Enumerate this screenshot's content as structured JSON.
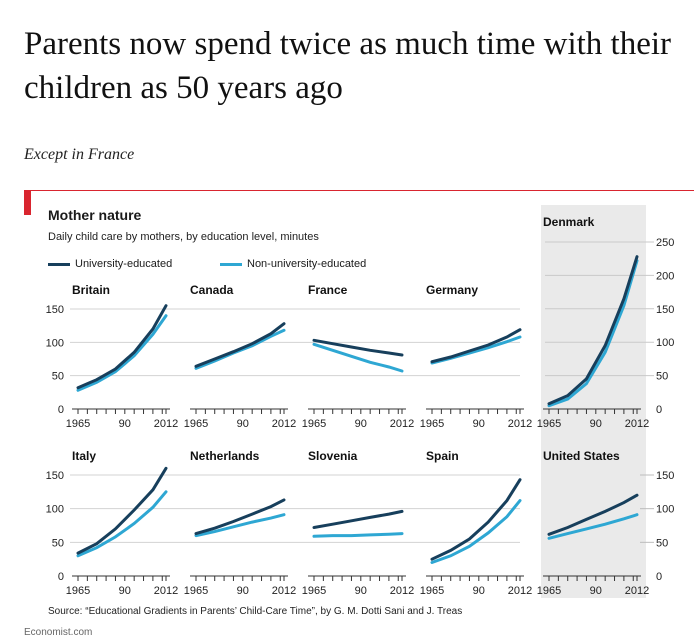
{
  "headline": "Parents now spend twice as much time with their children as 50 years ago",
  "subhead": "Except in France",
  "source": "Source: “Educational Gradients in Parents’ Child-Care Time”, by G. M. Dotti Sani and J. Treas",
  "brand": "Economist.com",
  "colors": {
    "university": "#173f5c",
    "non_university": "#2ea7d3",
    "accent": "#d9252f"
  },
  "chart_data": {
    "type": "line",
    "title": "Mother nature",
    "subtitle": "Daily child care by mothers, by education level, minutes",
    "legend": [
      "University-educated",
      "Non-university-educated"
    ],
    "x": [
      1965,
      1975,
      1985,
      1995,
      2005,
      2012
    ],
    "x_ticks": [
      "1965",
      "90",
      "2012"
    ],
    "y_ticks_small": [
      "150",
      "100",
      "50",
      "0"
    ],
    "y_ticks_denmark": [
      "250",
      "200",
      "150",
      "100",
      "50",
      "0"
    ],
    "ylim_small": [
      0,
      160
    ],
    "ylim_denmark": [
      0,
      250
    ],
    "panels": [
      {
        "country": "Britain",
        "university": [
          32,
          44,
          60,
          85,
          120,
          155
        ],
        "non_university": [
          28,
          40,
          56,
          80,
          112,
          140
        ]
      },
      {
        "country": "Canada",
        "university": [
          64,
          75,
          86,
          98,
          113,
          128
        ],
        "non_university": [
          61,
          72,
          84,
          95,
          109,
          118
        ]
      },
      {
        "country": "France",
        "university": [
          103,
          98,
          93,
          88,
          84,
          81
        ],
        "non_university": [
          97,
          88,
          79,
          70,
          63,
          57
        ]
      },
      {
        "country": "Germany",
        "university": [
          71,
          78,
          87,
          96,
          108,
          119
        ],
        "non_university": [
          69,
          76,
          84,
          92,
          101,
          108
        ]
      },
      {
        "country": "Denmark",
        "university": [
          8,
          20,
          45,
          95,
          165,
          228
        ],
        "non_university": [
          5,
          15,
          38,
          85,
          155,
          222
        ]
      },
      {
        "country": "Italy",
        "university": [
          34,
          48,
          70,
          98,
          128,
          160
        ],
        "non_university": [
          30,
          42,
          58,
          78,
          102,
          125
        ]
      },
      {
        "country": "Netherlands",
        "university": [
          63,
          71,
          81,
          92,
          103,
          113
        ],
        "non_university": [
          60,
          66,
          73,
          80,
          86,
          91
        ]
      },
      {
        "country": "Slovenia",
        "university": [
          72,
          77,
          82,
          87,
          92,
          96
        ],
        "non_university": [
          59,
          60,
          60,
          61,
          62,
          63
        ]
      },
      {
        "country": "Spain",
        "university": [
          25,
          38,
          55,
          80,
          112,
          143
        ],
        "non_university": [
          20,
          30,
          44,
          64,
          88,
          112
        ]
      },
      {
        "country": "United States",
        "university": [
          62,
          72,
          84,
          96,
          109,
          120
        ],
        "non_university": [
          56,
          63,
          70,
          77,
          85,
          91
        ]
      }
    ]
  }
}
